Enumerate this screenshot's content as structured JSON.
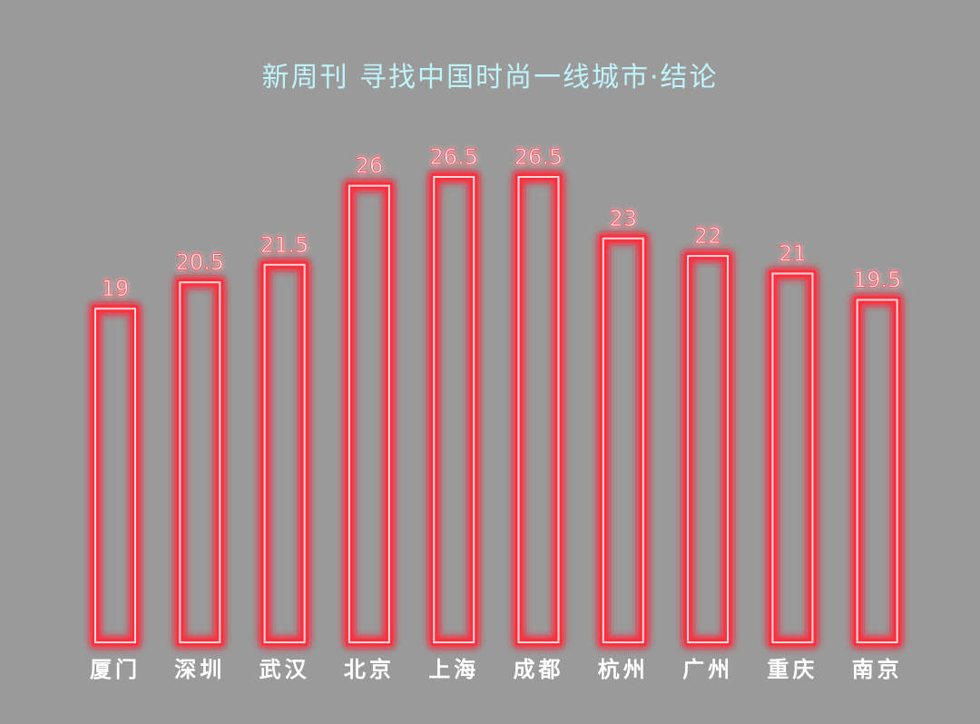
{
  "colors": {
    "background": "#9a9a9a",
    "title": "#bff4fb",
    "bar_glow": "#ff2e3c",
    "bar_core": "#ffd9dc",
    "value_text": "#ffffff",
    "value_glow": "#ff5a66",
    "category_text": "#ffffff"
  },
  "chart_data": {
    "type": "bar",
    "title": "新周刊  寻找中国时尚一线城市·结论",
    "categories": [
      "厦门",
      "深圳",
      "武汉",
      "北京",
      "上海",
      "成都",
      "杭州",
      "广州",
      "重庆",
      "南京"
    ],
    "values": [
      19,
      20.5,
      21.5,
      26,
      26.5,
      26.5,
      23,
      22,
      21,
      19.5
    ],
    "value_labels": [
      "19",
      "20.5",
      "21.5",
      "26",
      "26.5",
      "26.5",
      "23",
      "22",
      "21",
      "19.5"
    ],
    "xlabel": "",
    "ylabel": "",
    "ylim": [
      0,
      26.5
    ],
    "grid": false,
    "legend": "none"
  }
}
